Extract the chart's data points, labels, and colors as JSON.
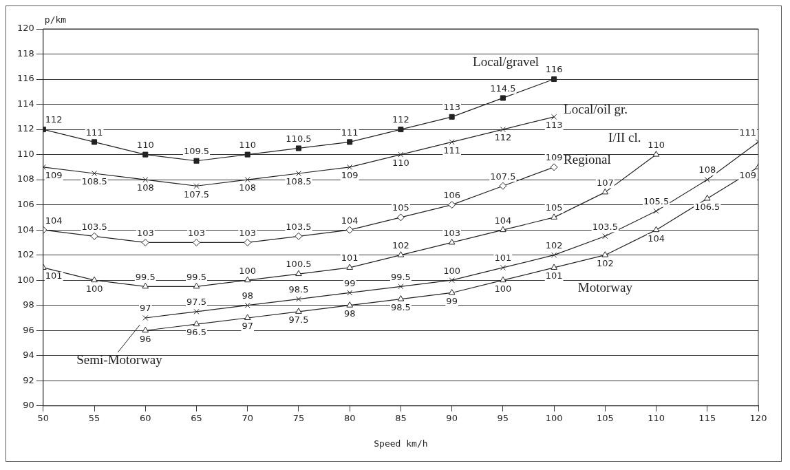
{
  "chart_data": {
    "type": "line",
    "xlabel": "Speed km/h",
    "ylabel": "p/km",
    "xlim": [
      50,
      120
    ],
    "xticks": [
      50,
      55,
      60,
      65,
      70,
      75,
      80,
      85,
      90,
      95,
      100,
      105,
      110,
      115,
      120
    ],
    "ylim": [
      90,
      120
    ],
    "yticks": [
      90,
      92,
      94,
      96,
      98,
      100,
      102,
      104,
      106,
      108,
      110,
      112,
      114,
      116,
      118,
      120
    ],
    "grid": "y",
    "legend": false,
    "data_labels": true,
    "line_style": "solid",
    "series": [
      {
        "name": "Local/gravel",
        "color": "#222222",
        "marker": "square",
        "x": [
          50,
          55,
          60,
          65,
          70,
          75,
          80,
          85,
          90,
          95,
          100
        ],
        "values": [
          112,
          111,
          110,
          109.5,
          110,
          110.5,
          111,
          112,
          113,
          114.5,
          116
        ]
      },
      {
        "name": "Local/oil gr.",
        "color": "#222222",
        "marker": "cross",
        "x": [
          50,
          55,
          60,
          65,
          70,
          75,
          80,
          85,
          90,
          95,
          100
        ],
        "values": [
          109,
          108.5,
          108,
          107.5,
          108,
          108.5,
          109,
          110,
          111,
          112,
          113
        ]
      },
      {
        "name": "Regional",
        "color": "#222222",
        "marker": "diamond",
        "x": [
          50,
          55,
          60,
          65,
          70,
          75,
          80,
          85,
          90,
          95,
          100
        ],
        "values": [
          104,
          103.5,
          103,
          103,
          103,
          103.5,
          104,
          105,
          106,
          107.5,
          109
        ]
      },
      {
        "name": "I/II cl.",
        "color": "#222222",
        "marker": "triangle",
        "x": [
          50,
          55,
          60,
          65,
          70,
          75,
          80,
          85,
          90,
          95,
          100,
          105,
          110
        ],
        "values": [
          101,
          100,
          99.5,
          99.5,
          100,
          100.5,
          101,
          102,
          103,
          104,
          105,
          107,
          110
        ]
      },
      {
        "name": "Semi-Motorway",
        "color": "#222222",
        "marker": "cross",
        "x": [
          60,
          65,
          70,
          75,
          80,
          85,
          90,
          95,
          100,
          105,
          110,
          115,
          120
        ],
        "values": [
          97,
          97.5,
          98,
          98.5,
          99,
          99.5,
          100,
          101,
          102,
          103.5,
          105.5,
          108,
          111
        ]
      },
      {
        "name": "Motorway",
        "color": "#222222",
        "marker": "triangle",
        "x": [
          60,
          65,
          70,
          75,
          80,
          85,
          90,
          95,
          100,
          105,
          110,
          115,
          120
        ],
        "values": [
          96,
          96.5,
          97,
          97.5,
          98,
          98.5,
          99,
          100,
          101,
          102,
          104,
          106.5,
          109
        ]
      }
    ]
  }
}
